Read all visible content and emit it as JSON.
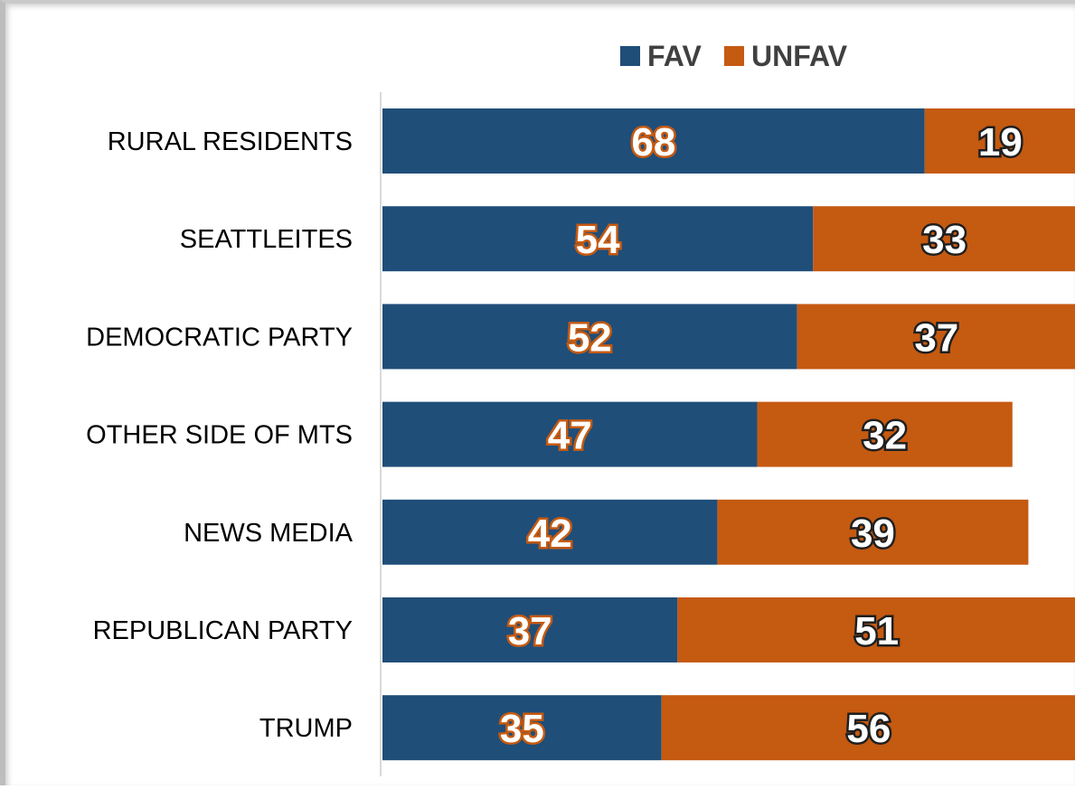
{
  "chart_data": {
    "type": "bar",
    "orientation": "horizontal",
    "stacked": true,
    "categories": [
      "RURAL RESIDENTS",
      "SEATTLEITES",
      "DEMOCRATIC PARTY",
      "OTHER SIDE OF MTS",
      "NEWS MEDIA",
      "REPUBLICAN PARTY",
      "TRUMP"
    ],
    "series": [
      {
        "name": "FAV",
        "color": "#1f4e79",
        "values": [
          68,
          54,
          52,
          47,
          42,
          37,
          35
        ]
      },
      {
        "name": "UNFAV",
        "color": "#c55a11",
        "values": [
          19,
          33,
          37,
          32,
          39,
          51,
          56
        ]
      }
    ],
    "legend_position": "top",
    "grid": false,
    "data_labels": true
  }
}
